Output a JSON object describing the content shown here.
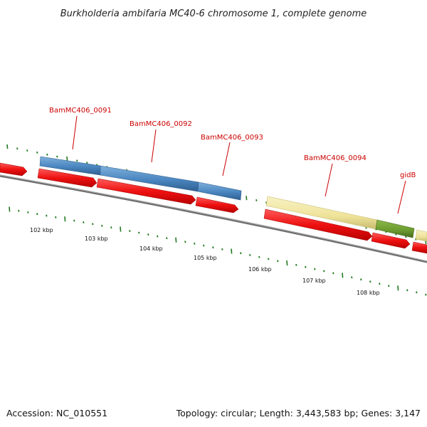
{
  "title": "Burkholderia ambifaria MC40-6 chromosome 1, complete genome",
  "accession": "Accession: NC_010551",
  "summary": "Topology: circular; Length: 3,443,583 bp; Genes: 3,147",
  "genes": [
    {
      "name": "BamMC406_0091",
      "color": "#4a86c0"
    },
    {
      "name": "BamMC406_0092",
      "color": "#4a86c0"
    },
    {
      "name": "BamMC406_0093",
      "color": "#4a86c0"
    },
    {
      "name": "BamMC406_0094",
      "color": "#f0e6a0"
    },
    {
      "name": "gidB",
      "color": "#6b9a2e"
    }
  ],
  "cds_color": "#ee1111",
  "backbone_color": "#7a7a7a",
  "tick_color": "#1f7a1f",
  "kbp_labels": [
    "102 kbp",
    "103 kbp",
    "104 kbp",
    "105 kbp",
    "106 kbp",
    "107 kbp",
    "108 kbp"
  ]
}
